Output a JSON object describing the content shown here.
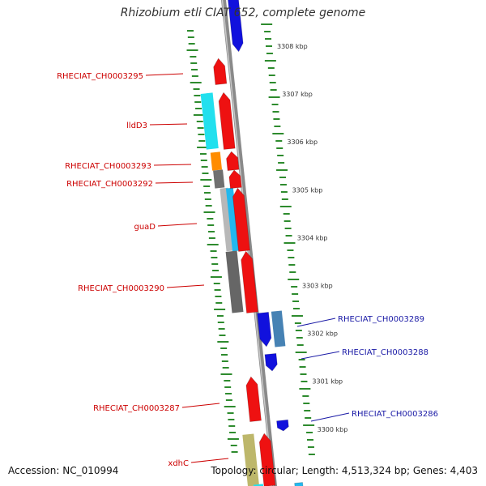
{
  "title": "Rhizobium etli CIAT 652, complete genome",
  "footer": {
    "accession": "Accession: NC_010994",
    "topology": "Topology: circular; Length: 4,513,324 bp; Genes: 4,403"
  },
  "colors": {
    "backbone": "#8a8a8a",
    "tick": "#2e8b2e",
    "kbp_text": "#333333",
    "left_label": "#cc0000",
    "right_label": "#1a1aa6"
  },
  "kbp_marks": [
    {
      "label": "3308 kbp",
      "kbp": 3308
    },
    {
      "label": "3307 kbp",
      "kbp": 3307
    },
    {
      "label": "3306 kbp",
      "kbp": 3306
    },
    {
      "label": "3305 kbp",
      "kbp": 3305
    },
    {
      "label": "3304 kbp",
      "kbp": 3304
    },
    {
      "label": "3303 kbp",
      "kbp": 3303
    },
    {
      "label": "3302 kbp",
      "kbp": 3302
    },
    {
      "label": "3301 kbp",
      "kbp": 3301
    },
    {
      "label": "3300 kbp",
      "kbp": 3300
    }
  ],
  "genes": [
    {
      "name": "RHECIAT_CH0003295",
      "side": "left",
      "color": "#ee1111"
    },
    {
      "name": "lldD3",
      "side": "left",
      "color": "#ee1111"
    },
    {
      "name": "RHECIAT_CH0003293",
      "side": "left",
      "color": "#ee1111"
    },
    {
      "name": "RHECIAT_CH0003292",
      "side": "left",
      "color": "#ee1111"
    },
    {
      "name": "guaD",
      "side": "left",
      "color": "#ee1111"
    },
    {
      "name": "RHECIAT_CH0003290",
      "side": "left",
      "color": "#ee1111"
    },
    {
      "name": "RHECIAT_CH0003289",
      "side": "right",
      "color": "#1111dd"
    },
    {
      "name": "RHECIAT_CH0003288",
      "side": "right",
      "color": "#1111dd"
    },
    {
      "name": "RHECIAT_CH0003287",
      "side": "left",
      "color": "#ee1111"
    },
    {
      "name": "RHECIAT_CH0003286",
      "side": "right",
      "color": "#1111dd"
    },
    {
      "name": "xdhC",
      "side": "left",
      "color": "#ee1111"
    }
  ],
  "features": [
    {
      "kind": "cog",
      "color": "#22e0ee"
    },
    {
      "kind": "cog",
      "color": "#ff8c00"
    },
    {
      "kind": "cog",
      "color": "#707070"
    },
    {
      "kind": "cog",
      "color": "#b8b8b8"
    },
    {
      "kind": "cog",
      "color": "#22b8ee"
    },
    {
      "kind": "cog",
      "color": "#666666"
    },
    {
      "kind": "cog",
      "color": "#4682b4"
    },
    {
      "kind": "cog",
      "color": "#bdb76b"
    },
    {
      "kind": "cog",
      "color": "#22e0ee"
    }
  ]
}
